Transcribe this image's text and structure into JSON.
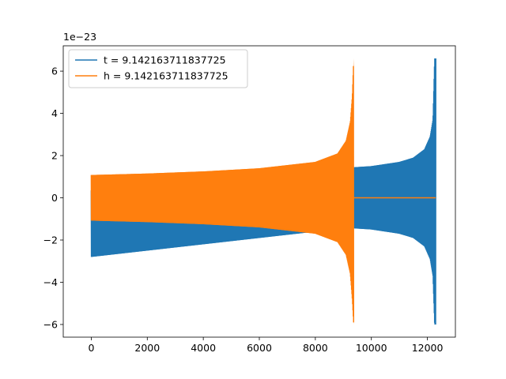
{
  "chart_data": {
    "type": "line",
    "title": "",
    "xlabel": "",
    "ylabel": "",
    "y_offset_label": "1e−23",
    "xlim": [
      -1000,
      13000
    ],
    "ylim": [
      -6.6,
      7.2
    ],
    "x_ticks": [
      0,
      2000,
      4000,
      6000,
      8000,
      10000,
      12000
    ],
    "x_tick_labels": [
      "0",
      "2000",
      "4000",
      "6000",
      "8000",
      "10000",
      "12000"
    ],
    "y_ticks": [
      -6,
      -4,
      -2,
      0,
      2,
      4,
      6
    ],
    "y_tick_labels": [
      "−6",
      "−4",
      "−2",
      "0",
      "2",
      "4",
      "6"
    ],
    "grid": false,
    "legend_position": "top-left",
    "series": [
      {
        "name": "t = 9.142163711837725",
        "color": "#1f77b4",
        "envelope": {
          "x": [
            0,
            9350,
            9400,
            10000,
            11000,
            11500,
            11900,
            12100,
            12200,
            12260,
            12300
          ],
          "upper": [
            0.35,
            1.4,
            1.45,
            1.5,
            1.7,
            1.9,
            2.3,
            2.9,
            3.7,
            6.6,
            6.6
          ],
          "lower": [
            -2.8,
            -1.4,
            -1.45,
            -1.5,
            -1.7,
            -1.9,
            -2.3,
            -2.9,
            -3.7,
            -6.0,
            -6.0
          ]
        }
      },
      {
        "name": "h = 9.142163711837725",
        "color": "#ff7f0e",
        "envelope": {
          "x": [
            0,
            2000,
            4000,
            6000,
            8000,
            8800,
            9100,
            9250,
            9320,
            9370
          ],
          "upper": [
            1.08,
            1.15,
            1.25,
            1.4,
            1.7,
            2.1,
            2.7,
            3.6,
            4.8,
            6.6
          ],
          "lower": [
            -1.08,
            -1.15,
            -1.25,
            -1.4,
            -1.7,
            -2.1,
            -2.7,
            -3.6,
            -4.8,
            -6.0
          ]
        },
        "after_merger": {
          "x": [
            9370,
            12300
          ],
          "y": [
            0,
            0
          ]
        }
      }
    ]
  }
}
